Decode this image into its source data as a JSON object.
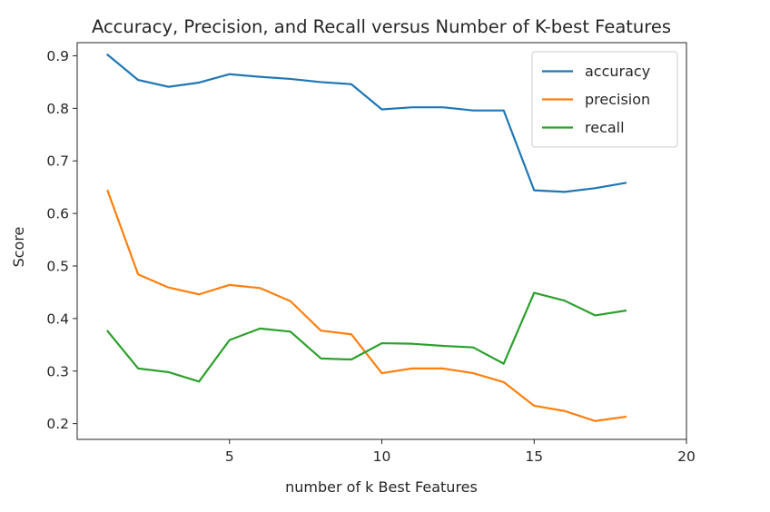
{
  "chart_data": {
    "type": "line",
    "title": "Accuracy, Precision, and Recall versus Number of K-best Features",
    "xlabel": "number of k Best Features",
    "ylabel": "Score",
    "xlim": [
      0.0,
      20.0
    ],
    "ylim": [
      0.17,
      0.925
    ],
    "xticks": [
      5,
      10,
      15,
      20
    ],
    "xtick_labels": [
      "5",
      "10",
      "15",
      "20"
    ],
    "yticks": [
      0.2,
      0.3,
      0.4,
      0.5,
      0.6,
      0.7,
      0.8,
      0.9
    ],
    "ytick_labels": [
      "0.2",
      "0.3",
      "0.4",
      "0.5",
      "0.6",
      "0.7",
      "0.8",
      "0.9"
    ],
    "grid": false,
    "legend_position": "top-right",
    "x": [
      1,
      2,
      3,
      4,
      5,
      6,
      7,
      8,
      9,
      10,
      11,
      12,
      13,
      14,
      15,
      16,
      17,
      18
    ],
    "series": [
      {
        "name": "accuracy",
        "color": "#1f77b4",
        "values": [
          0.902,
          0.854,
          0.841,
          0.849,
          0.865,
          0.86,
          0.856,
          0.85,
          0.846,
          0.798,
          0.802,
          0.802,
          0.796,
          0.796,
          0.644,
          0.641,
          0.648,
          0.658
        ]
      },
      {
        "name": "precision",
        "color": "#ff7f0e",
        "values": [
          0.643,
          0.484,
          0.459,
          0.446,
          0.464,
          0.458,
          0.433,
          0.377,
          0.37,
          0.296,
          0.305,
          0.305,
          0.296,
          0.279,
          0.234,
          0.224,
          0.205,
          0.213
        ]
      },
      {
        "name": "recall",
        "color": "#2ca02c",
        "values": [
          0.376,
          0.305,
          0.298,
          0.28,
          0.359,
          0.381,
          0.375,
          0.324,
          0.322,
          0.353,
          0.352,
          0.348,
          0.345,
          0.314,
          0.449,
          0.434,
          0.406,
          0.415
        ]
      }
    ]
  }
}
